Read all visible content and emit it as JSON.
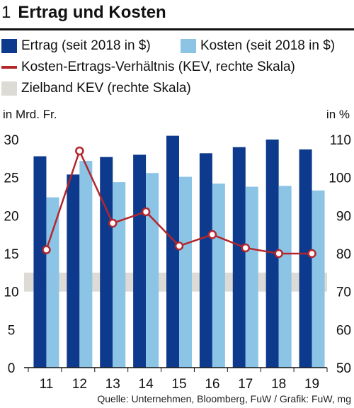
{
  "header": {
    "number": "1",
    "title": "Ertrag und Kosten"
  },
  "legend": {
    "ertrag": "Ertrag (seit 2018 in $)",
    "kosten": "Kosten (seit 2018 in $)",
    "kev": "Kosten-Ertrags-Verhältnis (KEV, rechte Skala)",
    "zielband": "Zielband KEV (rechte Skala)"
  },
  "units": {
    "left": "in Mrd. Fr.",
    "right": "in %"
  },
  "source": "Quelle: Unternehmen, Bloomberg, FuW / Grafik: FuW, mg",
  "colors": {
    "ertrag": "#0d3a8c",
    "kosten": "#8cc4e6",
    "kev": "#b3262c",
    "zielband": "#dddbd5"
  },
  "chart_data": {
    "type": "bar",
    "categories": [
      "11",
      "12",
      "13",
      "14",
      "15",
      "16",
      "17",
      "18",
      "19"
    ],
    "series": [
      {
        "name": "Ertrag (seit 2018 in $)",
        "axis": "left",
        "values": [
          27.8,
          25.4,
          27.7,
          28.0,
          30.5,
          28.2,
          29.0,
          30.0,
          28.7
        ]
      },
      {
        "name": "Kosten (seit 2018 in $)",
        "axis": "left",
        "values": [
          22.4,
          27.2,
          24.4,
          25.6,
          25.1,
          24.2,
          23.8,
          23.9,
          23.3
        ]
      },
      {
        "name": "Kosten-Ertrags-Verhältnis (KEV, rechte Skala)",
        "type": "line",
        "axis": "right",
        "values": [
          81,
          107,
          88,
          91,
          82,
          85,
          81.5,
          80,
          80
        ]
      }
    ],
    "band": {
      "name": "Zielband KEV (rechte Skala)",
      "axis": "right",
      "range": [
        70,
        75
      ]
    },
    "ylim_left": [
      0,
      30
    ],
    "yticks_left": [
      "0",
      "5",
      "10",
      "15",
      "20",
      "25",
      "30"
    ],
    "ylim_right": [
      50,
      110
    ],
    "yticks_right": [
      "50",
      "60",
      "70",
      "80",
      "90",
      "100",
      "110"
    ],
    "grid": false
  }
}
